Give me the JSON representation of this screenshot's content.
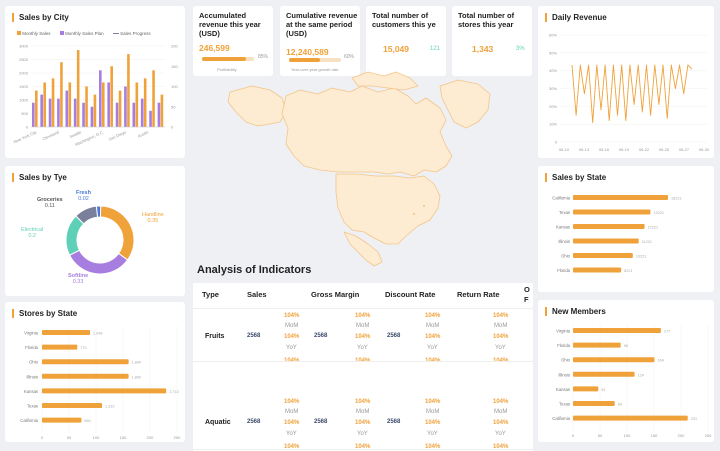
{
  "colors": {
    "accent": "#f0a23a",
    "purple": "#a77de0",
    "slate": "#7a7f9c",
    "teal": "#5fd0b8",
    "blue": "#4a78d8"
  },
  "sales_by_city": {
    "title": "Sales by City",
    "legend": [
      "Monthly Sales",
      "Monthly Sales Plan",
      "Sales Progress"
    ],
    "categories": [
      "New York City",
      "Cleveland",
      "Seattle",
      "Washington, D.C.",
      "San Diego",
      "Austin"
    ],
    "yticks_left": [
      "3000",
      "2500",
      "2000",
      "1500",
      "1000",
      "500",
      "0"
    ],
    "yticks_right": [
      "200",
      "150",
      "100",
      "50",
      "0"
    ]
  },
  "kpis": [
    {
      "title": "Accumulated revenue this year (USD)",
      "value": "246,599",
      "pct": "85%",
      "sub": "Profitability",
      "progress": 0.85
    },
    {
      "title": "Cumulative revenue at the same period (USD)",
      "value": "12,240,589",
      "pct": "60%",
      "sub": "Year-over-year growth rate",
      "progress": 0.6
    },
    {
      "title": "Total number of customers this ye",
      "value": "15,049",
      "pct": "121"
    },
    {
      "title": "Total number of stores this year",
      "value": "1,343",
      "pct": "3%"
    }
  ],
  "daily_revenue": {
    "title": "Daily Revenue",
    "yticks": [
      "60%",
      "50%",
      "40%",
      "30%",
      "20%",
      "10%",
      "0"
    ],
    "xticks": [
      "06-10",
      "06-13",
      "06-16",
      "06-19",
      "06-22",
      "06-25",
      "06-27",
      "06-30"
    ]
  },
  "sales_by_type": {
    "title": "Sales by Tye",
    "slices": [
      {
        "name": "Handline",
        "value": "0.35",
        "color": "#f0a23a"
      },
      {
        "name": "Softline",
        "value": "0.33",
        "color": "#a77de0"
      },
      {
        "name": "Electrical",
        "value": "0.2",
        "color": "#5fd0b8"
      },
      {
        "name": "Groceries",
        "value": "0.11",
        "color": "#7a7f9c"
      },
      {
        "name": "Fresh",
        "value": "0.02",
        "color": "#4a78d8"
      }
    ]
  },
  "sales_by_state": {
    "title": "Sales by State",
    "rows": [
      {
        "name": "California",
        "value": "16221"
      },
      {
        "name": "Texas",
        "value": "13221"
      },
      {
        "name": "Kansas",
        "value": "12221"
      },
      {
        "name": "Illinois",
        "value": "11221"
      },
      {
        "name": "Ohio",
        "value": "10221"
      },
      {
        "name": "Florida",
        "value": "8221"
      }
    ]
  },
  "stores_by_state": {
    "title": "Stores by State",
    "rows": [
      {
        "name": "Virginia",
        "value": "1,048"
      },
      {
        "name": "Florida",
        "value": "770"
      },
      {
        "name": "Ohio",
        "value": "1,890"
      },
      {
        "name": "Illinois",
        "value": "1,890"
      },
      {
        "name": "Kansas",
        "value": "2,710"
      },
      {
        "name": "Texas",
        "value": "1,310"
      },
      {
        "name": "California",
        "value": "860"
      }
    ],
    "xticks": [
      "0",
      "50",
      "100",
      "150",
      "200",
      "250"
    ]
  },
  "new_members": {
    "title": "New Members",
    "rows": [
      {
        "name": "Virginia",
        "value": "177"
      },
      {
        "name": "Florida",
        "value": "96"
      },
      {
        "name": "Ohio",
        "value": "164"
      },
      {
        "name": "Illinois",
        "value": "124"
      },
      {
        "name": "Kansas",
        "value": "51"
      },
      {
        "name": "Texas",
        "value": "84"
      },
      {
        "name": "California",
        "value": "231"
      }
    ],
    "xticks": [
      "0",
      "50",
      "100",
      "150",
      "200",
      "250"
    ]
  },
  "analysis": {
    "title": "Analysis of Indicators",
    "headers": [
      "Type",
      "Sales",
      "Gross Margin",
      "Discount Rate",
      "Return Rate",
      "O F"
    ],
    "rows": [
      {
        "type": "Fruits",
        "value": "2568",
        "pct": "104%",
        "mom": "MoM",
        "yoy": "YoY"
      },
      {
        "type": "Aquatic",
        "value": "2568",
        "pct": "104%",
        "mom": "MoM",
        "yoy": "YoY"
      }
    ]
  }
}
